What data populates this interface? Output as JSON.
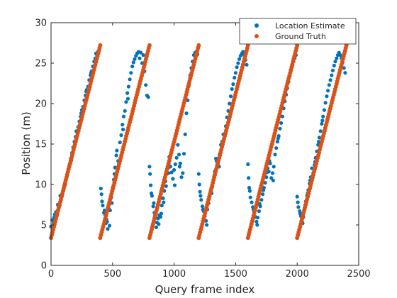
{
  "chart_data": {
    "type": "scatter",
    "xlabel": "Query frame index",
    "ylabel": "Position (m)",
    "xlim": [
      0,
      2500
    ],
    "ylim": [
      0,
      30
    ],
    "xticks": [
      0,
      500,
      1000,
      1500,
      2000,
      2500
    ],
    "yticks": [
      0,
      5,
      10,
      15,
      20,
      25,
      30
    ],
    "grid": false,
    "legend_position": "top-right",
    "series": [
      {
        "name": "Location Estimate",
        "color": "#0072BD",
        "points": [
          [
            0,
            4.8
          ],
          [
            10,
            5.6
          ],
          [
            20,
            5.2
          ],
          [
            30,
            6.3
          ],
          [
            40,
            6.6
          ],
          [
            50,
            6.2
          ],
          [
            60,
            7.0
          ],
          [
            70,
            7.4
          ],
          [
            80,
            8.0
          ],
          [
            90,
            8.7
          ],
          [
            100,
            9.3
          ],
          [
            110,
            9.8
          ],
          [
            120,
            10.6
          ],
          [
            130,
            11.1
          ],
          [
            140,
            11.9
          ],
          [
            150,
            12.4
          ],
          [
            160,
            13.2
          ],
          [
            170,
            13.9
          ],
          [
            180,
            14.6
          ],
          [
            190,
            15.3
          ],
          [
            200,
            15.9
          ],
          [
            210,
            16.5
          ],
          [
            220,
            17.1
          ],
          [
            230,
            17.8
          ],
          [
            240,
            18.4
          ],
          [
            250,
            19.2
          ],
          [
            260,
            19.6
          ],
          [
            270,
            20.4
          ],
          [
            280,
            21.0
          ],
          [
            290,
            21.7
          ],
          [
            300,
            22.1
          ],
          [
            310,
            22.9
          ],
          [
            320,
            23.5
          ],
          [
            330,
            24.0
          ],
          [
            340,
            24.6
          ],
          [
            350,
            25.2
          ],
          [
            360,
            25.6
          ],
          [
            370,
            26.1
          ],
          [
            380,
            26.4
          ],
          [
            25,
            5.9
          ],
          [
            55,
            7.5
          ],
          [
            75,
            8.6
          ],
          [
            115,
            10.0
          ],
          [
            165,
            13.0
          ],
          [
            205,
            16.6
          ],
          [
            245,
            18.8
          ],
          [
            285,
            21.5
          ],
          [
            325,
            23.8
          ],
          [
            365,
            26.2
          ],
          [
            405,
            9.5
          ],
          [
            410,
            8.8
          ],
          [
            420,
            7.4
          ],
          [
            430,
            6.5
          ],
          [
            440,
            6.2
          ],
          [
            450,
            5.7
          ],
          [
            455,
            5.4
          ],
          [
            460,
            4.5
          ],
          [
            470,
            7.0
          ],
          [
            480,
            6.8
          ],
          [
            490,
            8.4
          ],
          [
            500,
            9.6
          ],
          [
            510,
            10.6
          ],
          [
            520,
            12.1
          ],
          [
            530,
            13.6
          ],
          [
            540,
            11.8
          ],
          [
            550,
            12.4
          ],
          [
            560,
            15.2
          ],
          [
            570,
            16.1
          ],
          [
            580,
            17.4
          ],
          [
            590,
            18.4
          ],
          [
            600,
            19.1
          ],
          [
            610,
            20.2
          ],
          [
            620,
            21.3
          ],
          [
            630,
            22.1
          ],
          [
            640,
            23.0
          ],
          [
            650,
            23.8
          ],
          [
            660,
            24.6
          ],
          [
            670,
            25.1
          ],
          [
            680,
            25.5
          ],
          [
            690,
            25.9
          ],
          [
            700,
            26.2
          ],
          [
            710,
            26.4
          ],
          [
            720,
            25.6
          ],
          [
            730,
            26.3
          ],
          [
            740,
            25.0
          ],
          [
            750,
            26.0
          ],
          [
            760,
            24.0
          ],
          [
            770,
            22.3
          ],
          [
            780,
            21.0
          ],
          [
            790,
            20.8
          ],
          [
            415,
            7.9
          ],
          [
            435,
            6.8
          ],
          [
            445,
            5.2
          ],
          [
            475,
            4.9
          ],
          [
            495,
            7.7
          ],
          [
            515,
            11.3
          ],
          [
            535,
            14.2
          ],
          [
            545,
            12.9
          ],
          [
            585,
            16.8
          ],
          [
            625,
            20.6
          ],
          [
            800,
            12.2
          ],
          [
            805,
            11.3
          ],
          [
            810,
            9.9
          ],
          [
            820,
            8.6
          ],
          [
            830,
            7.3
          ],
          [
            840,
            6.5
          ],
          [
            850,
            5.9
          ],
          [
            860,
            5.3
          ],
          [
            870,
            5.8
          ],
          [
            880,
            6.2
          ],
          [
            890,
            6.0
          ],
          [
            900,
            7.4
          ],
          [
            910,
            8.3
          ],
          [
            920,
            9.2
          ],
          [
            930,
            10.4
          ],
          [
            940,
            11.3
          ],
          [
            950,
            12.0
          ],
          [
            960,
            13.4
          ],
          [
            970,
            12.2
          ],
          [
            980,
            11.5
          ],
          [
            990,
            10.7
          ],
          [
            1000,
            11.8
          ],
          [
            1010,
            12.5
          ],
          [
            1020,
            13.3
          ],
          [
            1030,
            14.9
          ],
          [
            1040,
            13.7
          ],
          [
            1050,
            12.6
          ],
          [
            1060,
            10.9
          ],
          [
            1070,
            11.4
          ],
          [
            1080,
            13.8
          ],
          [
            1090,
            16.2
          ],
          [
            1100,
            18.8
          ],
          [
            1110,
            20.4
          ],
          [
            1120,
            22.2
          ],
          [
            1130,
            23.5
          ],
          [
            1140,
            24.4
          ],
          [
            1150,
            25.2
          ],
          [
            1160,
            26.0
          ],
          [
            1170,
            26.3
          ],
          [
            1180,
            26.4
          ],
          [
            1190,
            26.1
          ],
          [
            815,
            8.9
          ],
          [
            835,
            7.7
          ],
          [
            855,
            4.7
          ],
          [
            875,
            5.1
          ],
          [
            895,
            6.4
          ],
          [
            915,
            7.8
          ],
          [
            935,
            9.8
          ],
          [
            955,
            11.4
          ],
          [
            1005,
            9.9
          ],
          [
            1045,
            12.2
          ],
          [
            1200,
            11.3
          ],
          [
            1205,
            10.0
          ],
          [
            1210,
            9.1
          ],
          [
            1220,
            8.1
          ],
          [
            1230,
            7.3
          ],
          [
            1240,
            6.7
          ],
          [
            1250,
            6.1
          ],
          [
            1260,
            5.5
          ],
          [
            1270,
            6.9
          ],
          [
            1280,
            7.7
          ],
          [
            1290,
            8.6
          ],
          [
            1300,
            9.1
          ],
          [
            1310,
            9.7
          ],
          [
            1320,
            10.6
          ],
          [
            1330,
            11.6
          ],
          [
            1340,
            13.2
          ],
          [
            1350,
            12.4
          ],
          [
            1360,
            12.9
          ],
          [
            1370,
            13.7
          ],
          [
            1380,
            14.9
          ],
          [
            1390,
            15.3
          ],
          [
            1400,
            16.2
          ],
          [
            1410,
            16.0
          ],
          [
            1420,
            17.2
          ],
          [
            1430,
            18.3
          ],
          [
            1440,
            19.1
          ],
          [
            1450,
            20.0
          ],
          [
            1460,
            20.9
          ],
          [
            1470,
            21.8
          ],
          [
            1480,
            22.4
          ],
          [
            1490,
            23.2
          ],
          [
            1500,
            23.8
          ],
          [
            1510,
            24.5
          ],
          [
            1520,
            25.0
          ],
          [
            1530,
            25.5
          ],
          [
            1540,
            25.9
          ],
          [
            1550,
            26.2
          ],
          [
            1560,
            26.4
          ],
          [
            1570,
            26.0
          ],
          [
            1580,
            25.4
          ],
          [
            1590,
            24.8
          ],
          [
            1215,
            8.6
          ],
          [
            1235,
            6.9
          ],
          [
            1265,
            5.0
          ],
          [
            1285,
            8.2
          ],
          [
            1305,
            8.9
          ],
          [
            1325,
            11.0
          ],
          [
            1345,
            12.9
          ],
          [
            1365,
            12.2
          ],
          [
            1405,
            15.6
          ],
          [
            1600,
            12.5
          ],
          [
            1605,
            10.8
          ],
          [
            1610,
            9.6
          ],
          [
            1620,
            8.4
          ],
          [
            1630,
            7.8
          ],
          [
            1640,
            7.2
          ],
          [
            1650,
            6.6
          ],
          [
            1660,
            6.0
          ],
          [
            1670,
            5.4
          ],
          [
            1680,
            5.9
          ],
          [
            1690,
            6.7
          ],
          [
            1700,
            7.3
          ],
          [
            1710,
            8.1
          ],
          [
            1720,
            8.8
          ],
          [
            1730,
            9.6
          ],
          [
            1740,
            10.2
          ],
          [
            1750,
            10.9
          ],
          [
            1760,
            12.0
          ],
          [
            1770,
            11.6
          ],
          [
            1780,
            12.6
          ],
          [
            1790,
            10.8
          ],
          [
            1800,
            11.4
          ],
          [
            1810,
            12.2
          ],
          [
            1820,
            13.7
          ],
          [
            1830,
            14.5
          ],
          [
            1840,
            15.3
          ],
          [
            1850,
            16.0
          ],
          [
            1860,
            16.9
          ],
          [
            1870,
            17.6
          ],
          [
            1880,
            18.4
          ],
          [
            1890,
            19.4
          ],
          [
            1900,
            20.3
          ],
          [
            1910,
            21.1
          ],
          [
            1920,
            21.9
          ],
          [
            1930,
            22.7
          ],
          [
            1940,
            23.4
          ],
          [
            1950,
            24.1
          ],
          [
            1960,
            24.7
          ],
          [
            1970,
            25.2
          ],
          [
            1980,
            25.6
          ],
          [
            1990,
            26.0
          ],
          [
            1615,
            9.2
          ],
          [
            1645,
            6.9
          ],
          [
            1675,
            5.0
          ],
          [
            1695,
            7.6
          ],
          [
            1725,
            9.3
          ],
          [
            1755,
            11.5
          ],
          [
            1775,
            12.9
          ],
          [
            1805,
            10.5
          ],
          [
            1845,
            15.7
          ],
          [
            2000,
            8.5
          ],
          [
            2005,
            7.8
          ],
          [
            2010,
            7.2
          ],
          [
            2020,
            6.7
          ],
          [
            2030,
            6.1
          ],
          [
            2040,
            5.4
          ],
          [
            2050,
            6.0
          ],
          [
            2060,
            7.0
          ],
          [
            2070,
            7.9
          ],
          [
            2080,
            8.6
          ],
          [
            2090,
            9.3
          ],
          [
            2100,
            10.1
          ],
          [
            2110,
            10.9
          ],
          [
            2120,
            12.0
          ],
          [
            2130,
            11.4
          ],
          [
            2140,
            12.4
          ],
          [
            2150,
            13.3
          ],
          [
            2160,
            14.1
          ],
          [
            2170,
            14.9
          ],
          [
            2180,
            15.8
          ],
          [
            2190,
            16.6
          ],
          [
            2200,
            17.5
          ],
          [
            2210,
            18.4
          ],
          [
            2220,
            19.2
          ],
          [
            2230,
            20.1
          ],
          [
            2240,
            20.9
          ],
          [
            2250,
            21.6
          ],
          [
            2260,
            22.3
          ],
          [
            2270,
            22.9
          ],
          [
            2280,
            23.5
          ],
          [
            2290,
            24.1
          ],
          [
            2300,
            24.7
          ],
          [
            2310,
            25.2
          ],
          [
            2320,
            25.6
          ],
          [
            2330,
            26.0
          ],
          [
            2340,
            26.3
          ],
          [
            2350,
            26.0
          ],
          [
            2360,
            25.6
          ],
          [
            2370,
            25.1
          ],
          [
            2380,
            24.4
          ],
          [
            2390,
            23.8
          ],
          [
            2025,
            6.4
          ],
          [
            2045,
            5.2
          ],
          [
            2065,
            7.4
          ],
          [
            2085,
            8.9
          ],
          [
            2105,
            10.5
          ],
          [
            2125,
            11.0
          ],
          [
            2145,
            12.8
          ],
          [
            2175,
            15.3
          ],
          [
            2205,
            17.9
          ]
        ]
      },
      {
        "name": "Ground Truth",
        "color": "#D95319",
        "segments": [
          {
            "x": [
              0,
              400
            ],
            "y": [
              3.4,
              27.2
            ]
          },
          {
            "x": [
              400,
              800
            ],
            "y": [
              3.4,
              27.2
            ]
          },
          {
            "x": [
              800,
              1200
            ],
            "y": [
              3.4,
              27.2
            ]
          },
          {
            "x": [
              1200,
              1600
            ],
            "y": [
              3.4,
              27.2
            ]
          },
          {
            "x": [
              1600,
              2000
            ],
            "y": [
              3.4,
              27.2
            ]
          },
          {
            "x": [
              2000,
              2400
            ],
            "y": [
              3.4,
              27.2
            ]
          }
        ]
      }
    ]
  }
}
